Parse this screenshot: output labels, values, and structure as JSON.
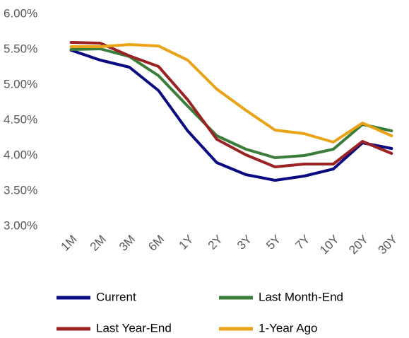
{
  "chart_data": {
    "type": "line",
    "categories": [
      "1M",
      "2M",
      "3M",
      "6M",
      "1Y",
      "2Y",
      "3Y",
      "5Y",
      "7Y",
      "10Y",
      "20Y",
      "30Y"
    ],
    "series": [
      {
        "name": "Current",
        "color": "#0a0a82",
        "values": [
          5.49,
          5.35,
          5.25,
          4.92,
          4.35,
          3.9,
          3.73,
          3.65,
          3.71,
          3.81,
          4.18,
          4.1
        ]
      },
      {
        "name": "Last Month-End",
        "color": "#3a7d3a",
        "values": [
          5.5,
          5.51,
          5.4,
          5.13,
          4.7,
          4.28,
          4.09,
          3.97,
          4.0,
          4.09,
          4.44,
          4.35
        ]
      },
      {
        "name": "Last Year-End",
        "color": "#9b2222",
        "values": [
          5.6,
          5.59,
          5.41,
          5.26,
          4.79,
          4.23,
          4.01,
          3.84,
          3.88,
          3.88,
          4.2,
          4.03
        ]
      },
      {
        "name": "1-Year Ago",
        "color": "#e8a317",
        "values": [
          5.54,
          5.54,
          5.57,
          5.55,
          5.35,
          4.94,
          4.64,
          4.36,
          4.31,
          4.19,
          4.46,
          4.28
        ]
      }
    ],
    "ylim": [
      3,
      6
    ],
    "yticks": [
      {
        "value": 3,
        "label": "3.00%"
      },
      {
        "value": 3.5,
        "label": "3.50%"
      },
      {
        "value": 4,
        "label": "4.00%"
      },
      {
        "value": 4.5,
        "label": "4.50%"
      },
      {
        "value": 5,
        "label": "5.00%"
      },
      {
        "value": 5.5,
        "label": "5.50%"
      },
      {
        "value": 6,
        "label": "6.00%"
      }
    ],
    "grid": false,
    "legend": "bottom"
  }
}
